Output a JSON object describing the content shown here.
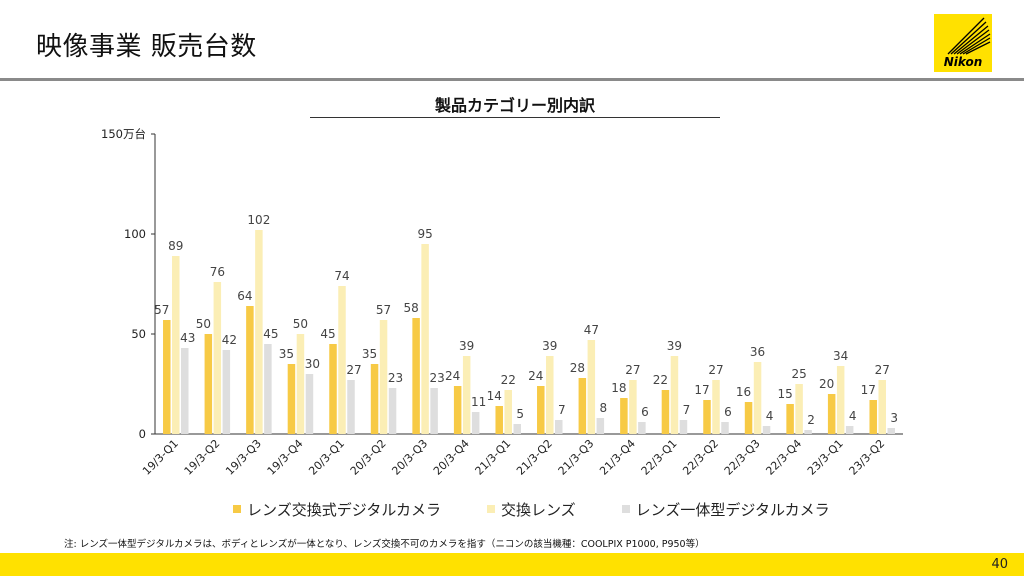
{
  "header": {
    "title": "映像事業 販売台数",
    "logo_text": "Nikon"
  },
  "chart_data": {
    "type": "bar",
    "title": "製品カテゴリー別内訳",
    "ylabel": "万台",
    "ylim": [
      0,
      150
    ],
    "y_ticks": [
      "0",
      "50",
      "100",
      "150万台"
    ],
    "y_tick_values": [
      0,
      50,
      100,
      150
    ],
    "grid": false,
    "legend_position": "bottom",
    "categories": [
      "19/3-Q1",
      "19/3-Q2",
      "19/3-Q3",
      "19/3-Q4",
      "20/3-Q1",
      "20/3-Q2",
      "20/3-Q3",
      "20/3-Q4",
      "21/3-Q1",
      "21/3-Q2",
      "21/3-Q3",
      "21/3-Q4",
      "22/3-Q1",
      "22/3-Q2",
      "22/3-Q3",
      "22/3-Q4",
      "23/3-Q1",
      "23/3-Q2"
    ],
    "series": [
      {
        "name": "レンズ交換式デジタルカメラ",
        "color": "#f7ca45",
        "values": [
          57,
          50,
          64,
          35,
          45,
          35,
          58,
          24,
          14,
          24,
          28,
          18,
          22,
          17,
          16,
          15,
          20,
          17
        ]
      },
      {
        "name": "交換レンズ",
        "color": "#fbeeb5",
        "values": [
          89,
          76,
          102,
          50,
          74,
          57,
          95,
          39,
          22,
          39,
          47,
          27,
          39,
          27,
          36,
          25,
          34,
          27
        ]
      },
      {
        "name": "レンズ一体型デジタルカメラ",
        "color": "#dedede",
        "values": [
          43,
          42,
          45,
          30,
          27,
          23,
          23,
          11,
          5,
          7,
          8,
          6,
          7,
          6,
          4,
          2,
          4,
          3
        ]
      }
    ]
  },
  "footnote": "注: レンズ一体型デジタルカメラは、ボディとレンズが一体となり、レンズ交換不可のカメラを指す（ニコンの該当機種：COOLPIX P1000, P950等）",
  "footer": {
    "page_number": "40"
  },
  "colors": {
    "accent": "#ffe100",
    "axis": "#333333",
    "label": "#444444"
  }
}
